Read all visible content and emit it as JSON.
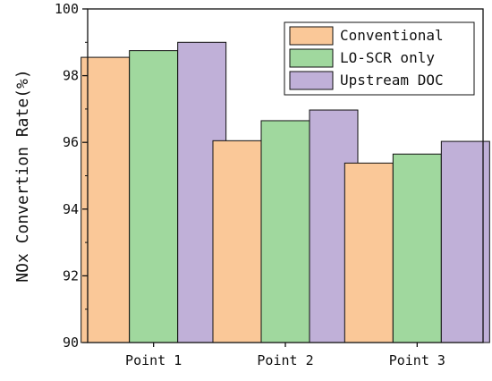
{
  "chart_data": {
    "type": "bar",
    "title": "",
    "xlabel": "",
    "ylabel": "NOx Convertion Rate(%)",
    "categories": [
      "Point 1",
      "Point 2",
      "Point 3"
    ],
    "series": [
      {
        "name": "Conventional",
        "color": "#fac898",
        "values": [
          98.55,
          96.05,
          95.38
        ]
      },
      {
        "name": "LO-SCR only",
        "color": "#a0d89e",
        "values": [
          98.75,
          96.65,
          95.65
        ]
      },
      {
        "name": "Upstream DOC",
        "color": "#c0b0d8",
        "values": [
          99.0,
          96.97,
          96.03
        ]
      }
    ],
    "ylim": [
      90,
      100
    ],
    "yticks": [
      90,
      92,
      94,
      96,
      98,
      100
    ],
    "grid": false,
    "legend_position": "top-right"
  }
}
